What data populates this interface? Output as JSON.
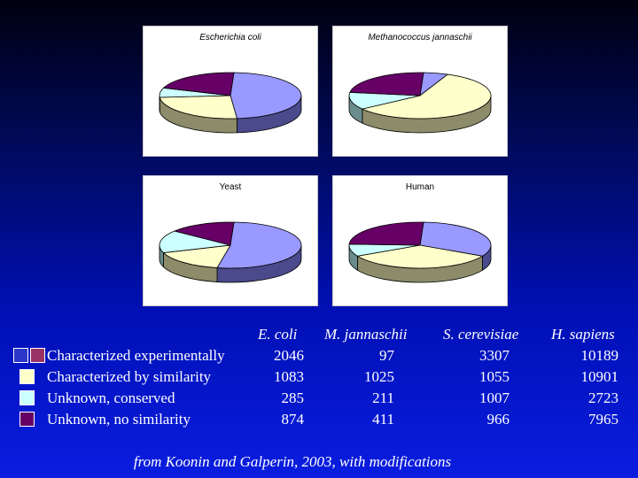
{
  "chart_data": {
    "type": "pie",
    "categories": [
      "Characterized experimentally",
      "Characterized by similarity",
      "Unknown, conserved",
      "Unknown, no similarity"
    ],
    "colors": [
      "#9999ff",
      "#ffffcc",
      "#ccffff",
      "#660066"
    ],
    "charts": [
      {
        "title": "Escherichia coli",
        "values": [
          2046,
          1083,
          285,
          874
        ]
      },
      {
        "title": "Methanococcus jannaschii",
        "values": [
          97,
          1025,
          211,
          411
        ]
      },
      {
        "title": "Yeast",
        "values": [
          3307,
          1055,
          1007,
          966
        ]
      },
      {
        "title": "Human",
        "values": [
          10189,
          10901,
          2723,
          7965
        ]
      }
    ]
  },
  "table": {
    "headers": [
      "E. coli",
      "M. jannaschii",
      "S. cerevisiae",
      "H. sapiens"
    ],
    "rows": [
      {
        "label": "Characterized experimentally",
        "values": [
          "2046",
          "97",
          "3307",
          "10189"
        ]
      },
      {
        "label": "Characterized by similarity",
        "values": [
          "1083",
          "1025",
          "1055",
          "10901"
        ]
      },
      {
        "label": "Unknown, conserved",
        "values": [
          "285",
          "211",
          "1007",
          "2723"
        ]
      },
      {
        "label": "Unknown, no similarity",
        "values": [
          "874",
          "411",
          "966",
          "7965"
        ]
      }
    ]
  },
  "caption": "from Koonin and Galperin, 2003, with modifications"
}
